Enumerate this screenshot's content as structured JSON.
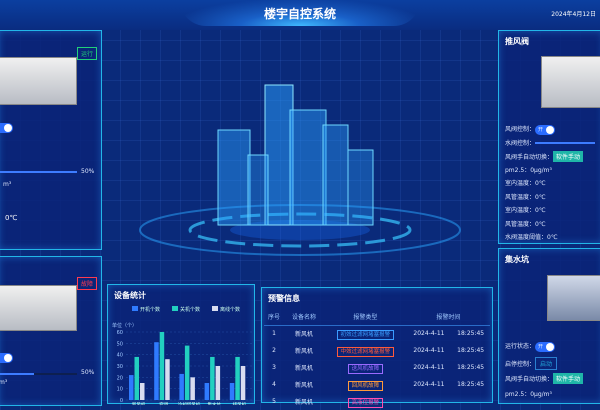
{
  "header": {
    "title": "楼宇自控系统",
    "date": "2024年4月12日"
  },
  "left_top": {
    "tag": "运行",
    "tag_color": "#21d07a",
    "slider_percent": 50,
    "slider_label": "50%",
    "unit_partial": "m³",
    "temp_partial": "0℃"
  },
  "left_bottom": {
    "tag": "故障",
    "tag_color": "#ff3b50",
    "slider_percent": 50,
    "slider_label": "50%",
    "unit_partial": "m³"
  },
  "right_top": {
    "title": "推风阀",
    "rows": [
      {
        "label": "风阀控制：",
        "toggle": "开"
      },
      {
        "label": "水阀控制："
      },
      {
        "label": "风阀手自动切换：",
        "button": "软件手动"
      },
      {
        "label": "pm2.5：0μg/m³"
      },
      {
        "label": "室内温度：0℃"
      },
      {
        "label": "风管温度：0℃"
      },
      {
        "label": "室内温度：0℃"
      },
      {
        "label": "风管温度：0℃"
      },
      {
        "label": "水阀温度阈值：0℃"
      }
    ]
  },
  "right_bottom": {
    "title": "集水坑",
    "rows": [
      {
        "label": "运行状态：",
        "toggle": "开"
      },
      {
        "label": "启停控制：",
        "button": "启动"
      },
      {
        "label": "风阀手自动切换：",
        "button": "软件手动"
      },
      {
        "label": "pm2.5：0μg/m³"
      }
    ]
  },
  "chart_data": {
    "type": "bar",
    "title": "设备统计",
    "ylabel": "单位（个）",
    "ylim": [
      0,
      60
    ],
    "yticks": [
      0,
      10,
      20,
      30,
      40,
      50,
      60
    ],
    "categories": [
      "新风机",
      "空调",
      "冷却塔风机",
      "集水坑",
      "排风机"
    ],
    "series": [
      {
        "name": "开机个数",
        "color": "#2f7bff",
        "values": [
          22,
          51,
          23,
          15,
          15
        ]
      },
      {
        "name": "关机个数",
        "color": "#22d0c0",
        "values": [
          38,
          60,
          48,
          38,
          38
        ]
      },
      {
        "name": "离线个数",
        "color": "#d8dcf0",
        "values": [
          15,
          36,
          20,
          30,
          30
        ]
      }
    ],
    "legend": "top"
  },
  "alarms": {
    "title": "预警信息",
    "headers": [
      "序号",
      "设备名称",
      "报警类型",
      "报警时间"
    ],
    "rows": [
      {
        "no": "1",
        "device": "新风机",
        "type": "初效过滤网堵塞报警",
        "color": "#3a9cff",
        "date": "2024-4-11",
        "time": "18:25:45"
      },
      {
        "no": "2",
        "device": "新风机",
        "type": "中效过滤网堵塞报警",
        "color": "#ff5a3a",
        "date": "2024-4-11",
        "time": "18:25:45"
      },
      {
        "no": "3",
        "device": "新风机",
        "type": "送风机故障",
        "color": "#9a6aff",
        "date": "2024-4-11",
        "time": "18:25:45"
      },
      {
        "no": "4",
        "device": "新风机",
        "type": "回风机故障",
        "color": "#ff9a3a",
        "date": "2024-4-11",
        "time": "18:25:45"
      },
      {
        "no": "5",
        "device": "新风机",
        "type": "高液位报警",
        "color": "#ff4fb0",
        "date": "",
        "time": ""
      }
    ]
  }
}
